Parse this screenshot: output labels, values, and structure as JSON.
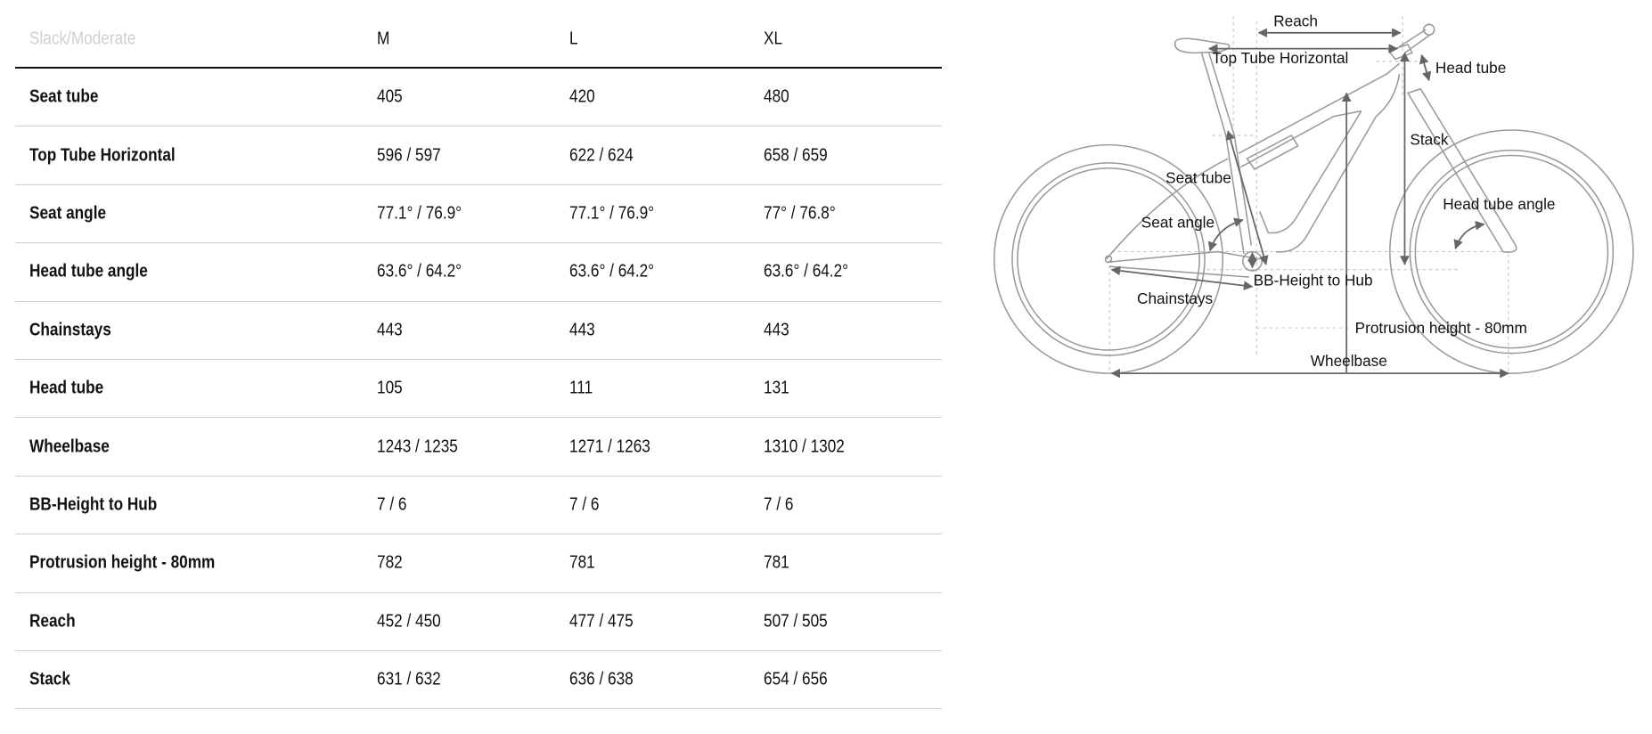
{
  "table": {
    "header": [
      "Slack/Moderate",
      "M",
      "L",
      "XL"
    ],
    "rows": [
      [
        "Seat tube",
        "405",
        "420",
        "480"
      ],
      [
        "Top Tube Horizontal",
        "596 / 597",
        "622 / 624",
        "658 / 659"
      ],
      [
        "Seat angle",
        "77.1° / 76.9°",
        "77.1° / 76.9°",
        "77° / 76.8°"
      ],
      [
        "Head tube angle",
        "63.6° / 64.2°",
        "63.6° / 64.2°",
        "63.6° / 64.2°"
      ],
      [
        "Chainstays",
        "443",
        "443",
        "443"
      ],
      [
        "Head tube",
        "105",
        "111",
        "131"
      ],
      [
        "Wheelbase",
        "1243 / 1235",
        "1271 / 1263",
        "1310 / 1302"
      ],
      [
        "BB-Height to Hub",
        "7 / 6",
        "7 / 6",
        "7 / 6"
      ],
      [
        "Protrusion height - 80mm",
        "782",
        "781",
        "781"
      ],
      [
        "Reach",
        "452 / 450",
        "477 / 475",
        "507 / 505"
      ],
      [
        "Stack",
        "631 / 632",
        "636 / 638",
        "654 / 656"
      ]
    ]
  },
  "diagram": {
    "labels": {
      "reach": "Reach",
      "top_tube": "Top Tube Horizontal",
      "head_tube": "Head tube",
      "stack": "Stack",
      "seat_tube": "Seat tube",
      "head_tube_angle": "Head tube angle",
      "seat_angle": "Seat angle",
      "bb_height": "BB-Height to Hub",
      "chainstays": "Chainstays",
      "protrusion": "Protrusion height - 80mm",
      "wheelbase": "Wheelbase"
    },
    "colors": {
      "frame": "#9a9a9a",
      "arrow": "#666666"
    }
  }
}
